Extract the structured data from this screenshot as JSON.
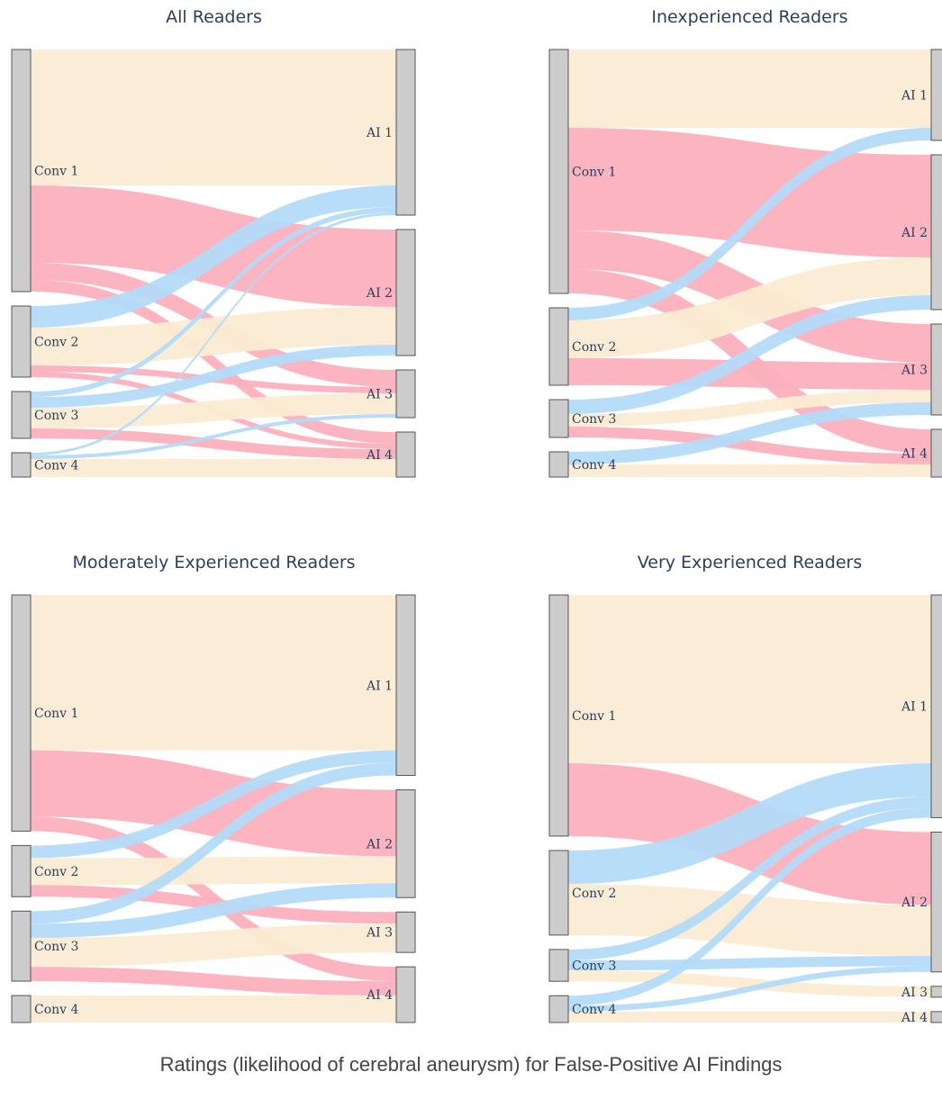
{
  "caption": "Ratings (likelihood of cerebral aneurysm) for False-Positive AI Findings",
  "colors": {
    "same": "#fbecd3",
    "up": "#fbb0bd",
    "down": "#b3dbf8",
    "node_fill": "#cccccc",
    "node_stroke": "#555555",
    "title": "#2a3f5f",
    "label": "#2a3f5f"
  },
  "chart_data": [
    {
      "type": "sankey",
      "title": "All Readers",
      "source_labels": [
        "Conv 1",
        "Conv 2",
        "Conv 3",
        "Conv 4"
      ],
      "target_labels": [
        "AI 1",
        "AI 2",
        "AI 3",
        "AI 4"
      ],
      "flows": [
        {
          "from": 0,
          "to": 0,
          "value": 30.2
        },
        {
          "from": 0,
          "to": 1,
          "value": 17.2
        },
        {
          "from": 0,
          "to": 2,
          "value": 3.8
        },
        {
          "from": 0,
          "to": 3,
          "value": 2.6
        },
        {
          "from": 1,
          "to": 0,
          "value": 4.8
        },
        {
          "from": 1,
          "to": 1,
          "value": 8.4
        },
        {
          "from": 1,
          "to": 2,
          "value": 1.4
        },
        {
          "from": 1,
          "to": 3,
          "value": 1.2
        },
        {
          "from": 2,
          "to": 0,
          "value": 1.2
        },
        {
          "from": 2,
          "to": 1,
          "value": 2.4
        },
        {
          "from": 2,
          "to": 2,
          "value": 4.6
        },
        {
          "from": 2,
          "to": 3,
          "value": 2.2
        },
        {
          "from": 3,
          "to": 0,
          "value": 0.6
        },
        {
          "from": 3,
          "to": 2,
          "value": 0.8
        },
        {
          "from": 3,
          "to": 3,
          "value": 4.0
        }
      ]
    },
    {
      "type": "sankey",
      "title": "Inexperienced Readers",
      "source_labels": [
        "Conv 1",
        "Conv 2",
        "Conv 3",
        "Conv 4"
      ],
      "target_labels": [
        "AI 1",
        "AI 2",
        "AI 3",
        "AI 4"
      ],
      "flows": [
        {
          "from": 0,
          "to": 0,
          "value": 17.4
        },
        {
          "from": 0,
          "to": 1,
          "value": 22.8
        },
        {
          "from": 0,
          "to": 2,
          "value": 8.6
        },
        {
          "from": 0,
          "to": 3,
          "value": 5.4
        },
        {
          "from": 1,
          "to": 0,
          "value": 2.8
        },
        {
          "from": 1,
          "to": 1,
          "value": 8.4
        },
        {
          "from": 1,
          "to": 2,
          "value": 6.0
        },
        {
          "from": 2,
          "to": 1,
          "value": 3.2
        },
        {
          "from": 2,
          "to": 2,
          "value": 2.8
        },
        {
          "from": 2,
          "to": 3,
          "value": 2.4
        },
        {
          "from": 3,
          "to": 2,
          "value": 2.8
        },
        {
          "from": 3,
          "to": 3,
          "value": 2.8
        }
      ]
    },
    {
      "type": "sankey",
      "title": "Moderately Experienced Readers",
      "source_labels": [
        "Conv 1",
        "Conv 2",
        "Conv 3",
        "Conv 4"
      ],
      "target_labels": [
        "AI 1",
        "AI 2",
        "AI 3",
        "AI 4"
      ],
      "flows": [
        {
          "from": 0,
          "to": 0,
          "value": 34.6
        },
        {
          "from": 0,
          "to": 1,
          "value": 14.8
        },
        {
          "from": 0,
          "to": 3,
          "value": 3.2
        },
        {
          "from": 1,
          "to": 0,
          "value": 2.8
        },
        {
          "from": 1,
          "to": 1,
          "value": 6.0
        },
        {
          "from": 1,
          "to": 2,
          "value": 2.6
        },
        {
          "from": 2,
          "to": 0,
          "value": 2.8
        },
        {
          "from": 2,
          "to": 1,
          "value": 3.2
        },
        {
          "from": 2,
          "to": 2,
          "value": 6.4
        },
        {
          "from": 2,
          "to": 3,
          "value": 3.2
        },
        {
          "from": 3,
          "to": 3,
          "value": 6.0
        }
      ]
    },
    {
      "type": "sankey",
      "title": "Very Experienced Readers",
      "source_labels": [
        "Conv 1",
        "Conv 2",
        "Conv 3",
        "Conv 4"
      ],
      "target_labels": [
        "AI 1",
        "AI 2",
        "AI 3",
        "AI 4"
      ],
      "flows": [
        {
          "from": 0,
          "to": 0,
          "value": 40.2
        },
        {
          "from": 0,
          "to": 1,
          "value": 17.4
        },
        {
          "from": 1,
          "to": 0,
          "value": 8.0
        },
        {
          "from": 1,
          "to": 1,
          "value": 12.2
        },
        {
          "from": 2,
          "to": 0,
          "value": 2.6
        },
        {
          "from": 2,
          "to": 1,
          "value": 2.4
        },
        {
          "from": 2,
          "to": 2,
          "value": 2.6
        },
        {
          "from": 3,
          "to": 0,
          "value": 2.4
        },
        {
          "from": 3,
          "to": 1,
          "value": 1.4
        },
        {
          "from": 3,
          "to": 3,
          "value": 2.6
        }
      ]
    }
  ]
}
